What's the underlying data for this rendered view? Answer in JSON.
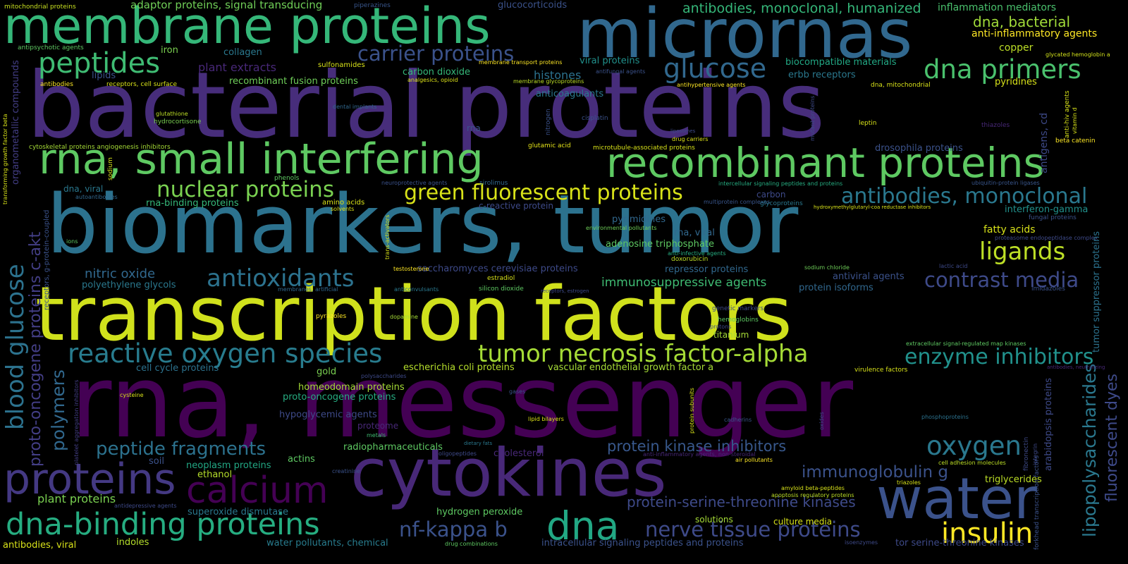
{
  "words": [
    {
      "text": "bacterial proteins",
      "color": "#472d7b"
    },
    {
      "text": "biomarkers, tumor",
      "color": "#2c728e"
    },
    {
      "text": "transcription factors",
      "color": "#d0e11c"
    },
    {
      "text": "rna, messenger",
      "color": "#440154"
    },
    {
      "text": "membrane proteins",
      "color": "#35b779"
    },
    {
      "text": "micrornas",
      "color": "#31688e"
    },
    {
      "text": "rna, small interfering",
      "color": "#5ec962"
    },
    {
      "text": "recombinant proteins",
      "color": "#5ec962"
    },
    {
      "text": "cytokines",
      "color": "#482878"
    },
    {
      "text": "water",
      "color": "#3b528b"
    },
    {
      "text": "proteins",
      "color": "#443983"
    },
    {
      "text": "calcium",
      "color": "#440154"
    },
    {
      "text": "dna-binding proteins",
      "color": "#26ad81"
    },
    {
      "text": "dna",
      "color": "#22a884"
    },
    {
      "text": "insulin",
      "color": "#fde725"
    },
    {
      "text": "oxygen",
      "color": "#2a788e"
    },
    {
      "text": "peptides",
      "color": "#3fbc73"
    },
    {
      "text": "glucose",
      "color": "#31688e"
    },
    {
      "text": "dna primers",
      "color": "#4ac16d"
    },
    {
      "text": "carrier proteins",
      "color": "#3b528b"
    },
    {
      "text": "nuclear proteins",
      "color": "#7ad151"
    },
    {
      "text": "green fluorescent proteins",
      "color": "#d8e219"
    },
    {
      "text": "antibodies, monoclonal",
      "color": "#2a788e"
    },
    {
      "text": "ligands",
      "color": "#bddf26"
    },
    {
      "text": "contrast media",
      "color": "#3e4a89"
    },
    {
      "text": "antioxidants",
      "color": "#2c728e"
    },
    {
      "text": "reactive oxygen species",
      "color": "#287c8e"
    },
    {
      "text": "tumor necrosis factor-alpha",
      "color": "#a5db36"
    },
    {
      "text": "enzyme inhibitors",
      "color": "#21918c"
    },
    {
      "text": "peptide fragments",
      "color": "#2c728e"
    },
    {
      "text": "protein kinase inhibitors",
      "color": "#38588c"
    },
    {
      "text": "nerve tissue proteins",
      "color": "#3e4a89"
    },
    {
      "text": "nf-kappa b",
      "color": "#3b528b"
    },
    {
      "text": "immunoglobulin g",
      "color": "#3b528b"
    },
    {
      "text": "protein-serine-threonine kinases",
      "color": "#3e4a89"
    },
    {
      "text": "blood glucose",
      "color": "#2c728e"
    },
    {
      "text": "proto-oncogene proteins c-akt",
      "color": "#433e85"
    },
    {
      "text": "polymers",
      "color": "#31688e"
    },
    {
      "text": "lipopolysaccharides",
      "color": "#2a788e"
    },
    {
      "text": "fluorescent dyes",
      "color": "#3e4a89"
    },
    {
      "text": "adaptor proteins, signal transducing",
      "color": "#70cf57"
    },
    {
      "text": "antibodies, monoclonal, humanized",
      "color": "#35b779"
    },
    {
      "text": "inflammation mediators",
      "color": "#4ac16d"
    },
    {
      "text": "dna, bacterial",
      "color": "#a0da39"
    },
    {
      "text": "anti-inflammatory agents",
      "color": "#fde725"
    },
    {
      "text": "copper",
      "color": "#bddf26"
    },
    {
      "text": "glucocorticoids",
      "color": "#3b528b"
    },
    {
      "text": "piperazines",
      "color": "#39568c"
    },
    {
      "text": "mitochondrial proteins",
      "color": "#c8e020"
    },
    {
      "text": "antipsychotic agents",
      "color": "#5ec962"
    },
    {
      "text": "iron",
      "color": "#7ad151"
    },
    {
      "text": "collagen",
      "color": "#2a788e"
    },
    {
      "text": "plant extracts",
      "color": "#482878"
    },
    {
      "text": "sulfonamides",
      "color": "#d8e219"
    },
    {
      "text": "membrane transport proteins",
      "color": "#fde725"
    },
    {
      "text": "viral proteins",
      "color": "#21918c"
    },
    {
      "text": "biocompatible materials",
      "color": "#22a884"
    },
    {
      "text": "glycated hemoglobin a",
      "color": "#d2e21b"
    },
    {
      "text": "lipids",
      "color": "#3b528b"
    },
    {
      "text": "antibodies",
      "color": "#fde725"
    },
    {
      "text": "receptors, cell surface",
      "color": "#d8e219"
    },
    {
      "text": "recombinant fusion proteins",
      "color": "#6ece58"
    },
    {
      "text": "carbon dioxide",
      "color": "#35b779"
    },
    {
      "text": "histones",
      "color": "#2c728e"
    },
    {
      "text": "antifungal agents",
      "color": "#3b528b"
    },
    {
      "text": "erbb receptors",
      "color": "#2a788e"
    },
    {
      "text": "pyridines",
      "color": "#d8e219"
    },
    {
      "text": "analgesics, opioid",
      "color": "#dde318"
    },
    {
      "text": "membrane glycoproteins",
      "color": "#bddf26"
    },
    {
      "text": "antihypertensive agents",
      "color": "#fde725"
    },
    {
      "text": "dna, mitochondrial",
      "color": "#d8e219"
    },
    {
      "text": "zinc",
      "color": "#6ece58"
    },
    {
      "text": "anticoagulants",
      "color": "#2a788e"
    },
    {
      "text": "dental implants",
      "color": "#31688e"
    },
    {
      "text": "glutathione",
      "color": "#bddf26"
    },
    {
      "text": "hydrocortisone",
      "color": "#7ad151"
    },
    {
      "text": "rna",
      "color": "#3b528b"
    },
    {
      "text": "cisplatin",
      "color": "#3b528b"
    },
    {
      "text": "liposomes",
      "color": "#3e4a89"
    },
    {
      "text": "leptin",
      "color": "#d8e219"
    },
    {
      "text": "thiazoles",
      "color": "#482878"
    },
    {
      "text": "beta catenin",
      "color": "#fde725"
    },
    {
      "text": "cytoskeletal proteins angiogenesis inhibitors",
      "color": "#a5db36"
    },
    {
      "text": "drug carriers",
      "color": "#dde318"
    },
    {
      "text": "glutamic acid",
      "color": "#e5e419"
    },
    {
      "text": "microtubule-associated proteins",
      "color": "#d8e219"
    },
    {
      "text": "drosophila proteins",
      "color": "#3b528b"
    },
    {
      "text": "phenols",
      "color": "#5ec962"
    },
    {
      "text": "neuroprotective agents",
      "color": "#3b528b"
    },
    {
      "text": "sirolimus",
      "color": "#31688e"
    },
    {
      "text": "intercellular signaling peptides and proteins",
      "color": "#26ad81"
    },
    {
      "text": "ubiquitin-protein ligases",
      "color": "#39568c"
    },
    {
      "text": "dna, viral",
      "color": "#2a788e"
    },
    {
      "text": "autoantibodies",
      "color": "#31688e"
    },
    {
      "text": "rna-binding proteins",
      "color": "#35b779"
    },
    {
      "text": "amino acids",
      "color": "#d8e219"
    },
    {
      "text": "carbon",
      "color": "#3e4a89"
    },
    {
      "text": "c-reactive protein",
      "color": "#3e4a89"
    },
    {
      "text": "multiprotein complexes",
      "color": "#39568c"
    },
    {
      "text": "glycoproteins",
      "color": "#2a788e"
    },
    {
      "text": "hydroxymethylglutaryl-coa reductase inhibitors",
      "color": "#d8e219"
    },
    {
      "text": "solvents",
      "color": "#dde318"
    },
    {
      "text": "interferon-gamma",
      "color": "#21918c"
    },
    {
      "text": "fungal proteins",
      "color": "#3b528b"
    },
    {
      "text": "pyrimidines",
      "color": "#31688e"
    },
    {
      "text": "environmental pollutants",
      "color": "#6ece58"
    },
    {
      "text": "rna, viral",
      "color": "#31688e"
    },
    {
      "text": "fatty acids",
      "color": "#d8e219"
    },
    {
      "text": "proteasome endopeptidase complex",
      "color": "#3e4a89"
    },
    {
      "text": "ions",
      "color": "#5ec962"
    },
    {
      "text": "adenosine triphosphate",
      "color": "#5ec962"
    },
    {
      "text": "anti-infective agents",
      "color": "#26ad81"
    },
    {
      "text": "doxorubicin",
      "color": "#bddf26"
    },
    {
      "text": "nitric oxide",
      "color": "#31688e"
    },
    {
      "text": "polyethylene glycols",
      "color": "#2a788e"
    },
    {
      "text": "saccharomyces cerevisiae proteins",
      "color": "#3e4a89"
    },
    {
      "text": "immunosuppressive agents",
      "color": "#3fbc73"
    },
    {
      "text": "repressor proteins",
      "color": "#31688e"
    },
    {
      "text": "antiviral agents",
      "color": "#3b528b"
    },
    {
      "text": "sodium chloride",
      "color": "#6ece58"
    },
    {
      "text": "lactic acid",
      "color": "#3e4a89"
    },
    {
      "text": "testosterone",
      "color": "#fde725"
    },
    {
      "text": "estradiol",
      "color": "#d8e219"
    },
    {
      "text": "membranes, artificial",
      "color": "#31688e"
    },
    {
      "text": "anticonvulsants",
      "color": "#2a788e"
    },
    {
      "text": "silicon dioxide",
      "color": "#5ec962"
    },
    {
      "text": "receptors, estrogen",
      "color": "#3e4a89"
    },
    {
      "text": "protein isoforms",
      "color": "#31688e"
    },
    {
      "text": "imidazoles",
      "color": "#3b528b"
    },
    {
      "text": "pyrazoles",
      "color": "#fde725"
    },
    {
      "text": "dopamine",
      "color": "#a5db36"
    },
    {
      "text": "genetic markers",
      "color": "#3e4a89"
    },
    {
      "text": "hemoglobins",
      "color": "#5ec962"
    },
    {
      "text": "protons",
      "color": "#3e4a89"
    },
    {
      "text": "titanium",
      "color": "#a5db36"
    },
    {
      "text": "extracellular signal-regulated map kinases",
      "color": "#5ec962"
    },
    {
      "text": "cell cycle proteins",
      "color": "#2c728e"
    },
    {
      "text": "escherichia coli proteins",
      "color": "#b5de2b"
    },
    {
      "text": "vascular endothelial growth factor a",
      "color": "#a5db36"
    },
    {
      "text": "gold",
      "color": "#7ad151"
    },
    {
      "text": "polysaccharides",
      "color": "#3e4a89"
    },
    {
      "text": "virulence factors",
      "color": "#d8e219"
    },
    {
      "text": "antibodies, neutralizing",
      "color": "#482878"
    },
    {
      "text": "homeodomain proteins",
      "color": "#a5db36"
    },
    {
      "text": "proto-oncogene proteins",
      "color": "#26ad81"
    },
    {
      "text": "cysteine",
      "color": "#d8e219"
    },
    {
      "text": "gases",
      "color": "#3b528b"
    },
    {
      "text": "hypoglycemic agents",
      "color": "#3e4a89"
    },
    {
      "text": "lipid bilayers",
      "color": "#dde318"
    },
    {
      "text": "cadherins",
      "color": "#39568c"
    },
    {
      "text": "phosphoproteins",
      "color": "#2c728e"
    },
    {
      "text": "proteome",
      "color": "#482878"
    },
    {
      "text": "metals",
      "color": "#3fbc73"
    },
    {
      "text": "radiopharmaceuticals",
      "color": "#5ec962"
    },
    {
      "text": "dietary fats",
      "color": "#2a788e"
    },
    {
      "text": "oligopeptides",
      "color": "#3e4a89"
    },
    {
      "text": "cholesterol",
      "color": "#482878"
    },
    {
      "text": "soil",
      "color": "#3b528b"
    },
    {
      "text": "neoplasm proteins",
      "color": "#22a884"
    },
    {
      "text": "actins",
      "color": "#5ec962"
    },
    {
      "text": "anti-inflammatory agents, non-steroidal",
      "color": "#482878"
    },
    {
      "text": "air pollutants",
      "color": "#fde725"
    },
    {
      "text": "cell adhesion molecules",
      "color": "#bddf26"
    },
    {
      "text": "ethanol",
      "color": "#b5de2b"
    },
    {
      "text": "creatinine",
      "color": "#3b528b"
    },
    {
      "text": "triazoles",
      "color": "#d8e219"
    },
    {
      "text": "triglycerides",
      "color": "#bddf26"
    },
    {
      "text": "plant proteins",
      "color": "#7ad151"
    },
    {
      "text": "antidepressive agents",
      "color": "#3e4a89"
    },
    {
      "text": "superoxide dismutase",
      "color": "#2a788e"
    },
    {
      "text": "hydrogen peroxide",
      "color": "#5ec962"
    },
    {
      "text": "amyloid beta-peptides",
      "color": "#d8e219"
    },
    {
      "text": "apoptosis regulatory proteins",
      "color": "#bddf26"
    },
    {
      "text": "solutions",
      "color": "#a5db36"
    },
    {
      "text": "culture media",
      "color": "#d8e219"
    },
    {
      "text": "antibodies, viral",
      "color": "#d8e219"
    },
    {
      "text": "indoles",
      "color": "#b5de2b"
    },
    {
      "text": "water pollutants, chemical",
      "color": "#287c8e"
    },
    {
      "text": "drug combinations",
      "color": "#5ec962"
    },
    {
      "text": "intracellular signaling peptides and proteins",
      "color": "#3b528b"
    },
    {
      "text": "isoenzymes",
      "color": "#3e4a89"
    },
    {
      "text": "tor serine-threonine kinases",
      "color": "#3e4a89"
    },
    {
      "text": "organometallic compounds",
      "color": "#433e85"
    },
    {
      "text": "transforming growth factor beta",
      "color": "#d8e219"
    },
    {
      "text": "sodium",
      "color": "#d8e219"
    },
    {
      "text": "receptors, g-protein-coupled",
      "color": "#3b528b"
    },
    {
      "text": "platelet aggregation inhibitors",
      "color": "#433e85"
    },
    {
      "text": "nitrogen",
      "color": "#3b528b"
    },
    {
      "text": "trans-activators",
      "color": "#d8e219"
    },
    {
      "text": "mutant proteins",
      "color": "#3e4a89"
    },
    {
      "text": "protein subunits",
      "color": "#d8e219"
    },
    {
      "text": "oxides",
      "color": "#3e4a89"
    },
    {
      "text": "antigens, cd",
      "color": "#3e4a89"
    },
    {
      "text": "anti-hiv agents",
      "color": "#d8e219"
    },
    {
      "text": "vitamin d",
      "color": "#d8e219"
    },
    {
      "text": "tumor suppressor proteins",
      "color": "#2c728e"
    },
    {
      "text": "arabidopsis proteins",
      "color": "#3e4a89"
    },
    {
      "text": "forkhead transcription factors",
      "color": "#3b528b"
    },
    {
      "text": "fibronectin",
      "color": "#3e4a89"
    },
    {
      "text": "integrin",
      "color": "#3e4a89"
    }
  ]
}
